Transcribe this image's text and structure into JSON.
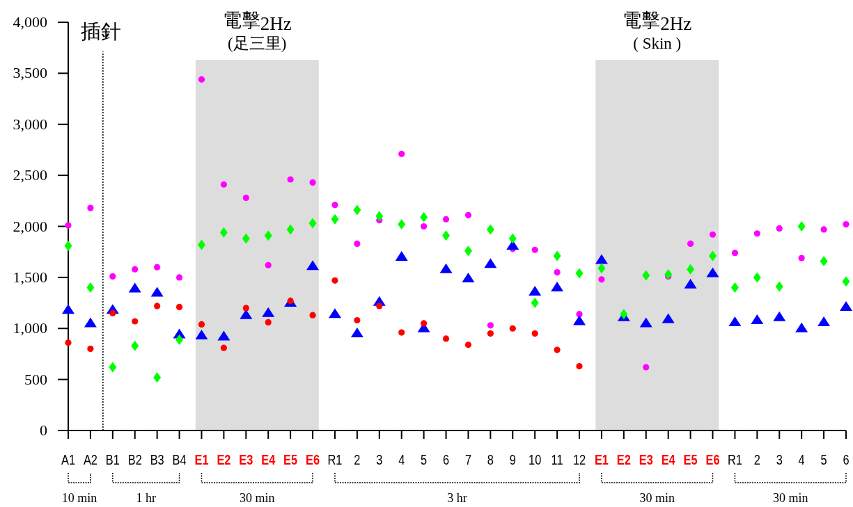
{
  "chart_data": {
    "type": "scatter",
    "categories": [
      "A1",
      "A2",
      "B1",
      "B2",
      "B3",
      "B4",
      "E1",
      "E2",
      "E3",
      "E4",
      "E5",
      "E6",
      "R1",
      "2",
      "3",
      "4",
      "5",
      "6",
      "7",
      "8",
      "9",
      "10",
      "11",
      "12",
      "E1",
      "E2",
      "E3",
      "E4",
      "E5",
      "E6",
      "R1",
      "2",
      "3",
      "4",
      "5",
      "6"
    ],
    "series": [
      {
        "color": "#ff00ff",
        "marker": "circle",
        "values": [
          2010,
          2180,
          1510,
          1580,
          1600,
          1500,
          3440,
          2410,
          2280,
          1620,
          2460,
          2430,
          2210,
          1830,
          2060,
          2710,
          2000,
          2070,
          2110,
          1030,
          1780,
          1770,
          1550,
          1140,
          1480,
          null,
          620,
          1510,
          1830,
          1920,
          1740,
          1930,
          1980,
          1690,
          1970,
          2020
        ]
      },
      {
        "color": "#0000ff",
        "marker": "triangle",
        "values": [
          1190,
          1060,
          1190,
          1400,
          1360,
          950,
          940,
          930,
          1140,
          1160,
          1260,
          1620,
          1150,
          960,
          1270,
          1710,
          1010,
          1590,
          1500,
          1640,
          1820,
          1370,
          1410,
          1080,
          1680,
          1120,
          1060,
          1100,
          1440,
          1550,
          1070,
          1090,
          1120,
          1010,
          1070,
          1220
        ]
      },
      {
        "color": "#00ff00",
        "marker": "diamond",
        "values": [
          1810,
          1400,
          620,
          830,
          520,
          890,
          1820,
          1940,
          1880,
          1910,
          1970,
          2030,
          2070,
          2160,
          2100,
          2020,
          2090,
          1910,
          1760,
          1970,
          1880,
          1250,
          1710,
          1540,
          1590,
          1140,
          1520,
          1530,
          1580,
          1710,
          1400,
          1500,
          1410,
          2000,
          1660,
          1460
        ]
      },
      {
        "color": "#ff0000",
        "marker": "circle",
        "values": [
          860,
          800,
          1150,
          1070,
          1220,
          1210,
          1040,
          810,
          1200,
          1060,
          1270,
          1130,
          1470,
          1080,
          1220,
          960,
          1050,
          900,
          840,
          950,
          1000,
          950,
          790,
          630,
          null,
          null,
          null,
          null,
          null,
          null,
          null,
          null,
          null,
          null,
          null,
          null
        ]
      }
    ],
    "ylim": [
      0,
      4000
    ],
    "yticks": [
      0,
      500,
      {
        "value": 1000,
        "label": "1,000"
      },
      {
        "value": 1500,
        "label": "1,500"
      },
      {
        "value": 2000,
        "label": "2,000"
      },
      {
        "value": 2500,
        "label": "2,500"
      },
      {
        "value": 3000,
        "label": "3,000"
      },
      {
        "value": 3500,
        "label": "3,500"
      },
      {
        "value": 4000,
        "label": "4,000"
      }
    ],
    "bands": [
      {
        "axis": "x",
        "from": "E1",
        "to": "E6",
        "color": "#dddddd",
        "label": "電擊$_{2Hz}$\n(足三里)"
      }
    ],
    "annotations": [
      "插針",
      "電擊$_{2Hz}$\n( Skin )",
      "10 min",
      "1 hr",
      "30 min",
      "3 hr",
      "30 min",
      "30 min"
    ]
  }
}
